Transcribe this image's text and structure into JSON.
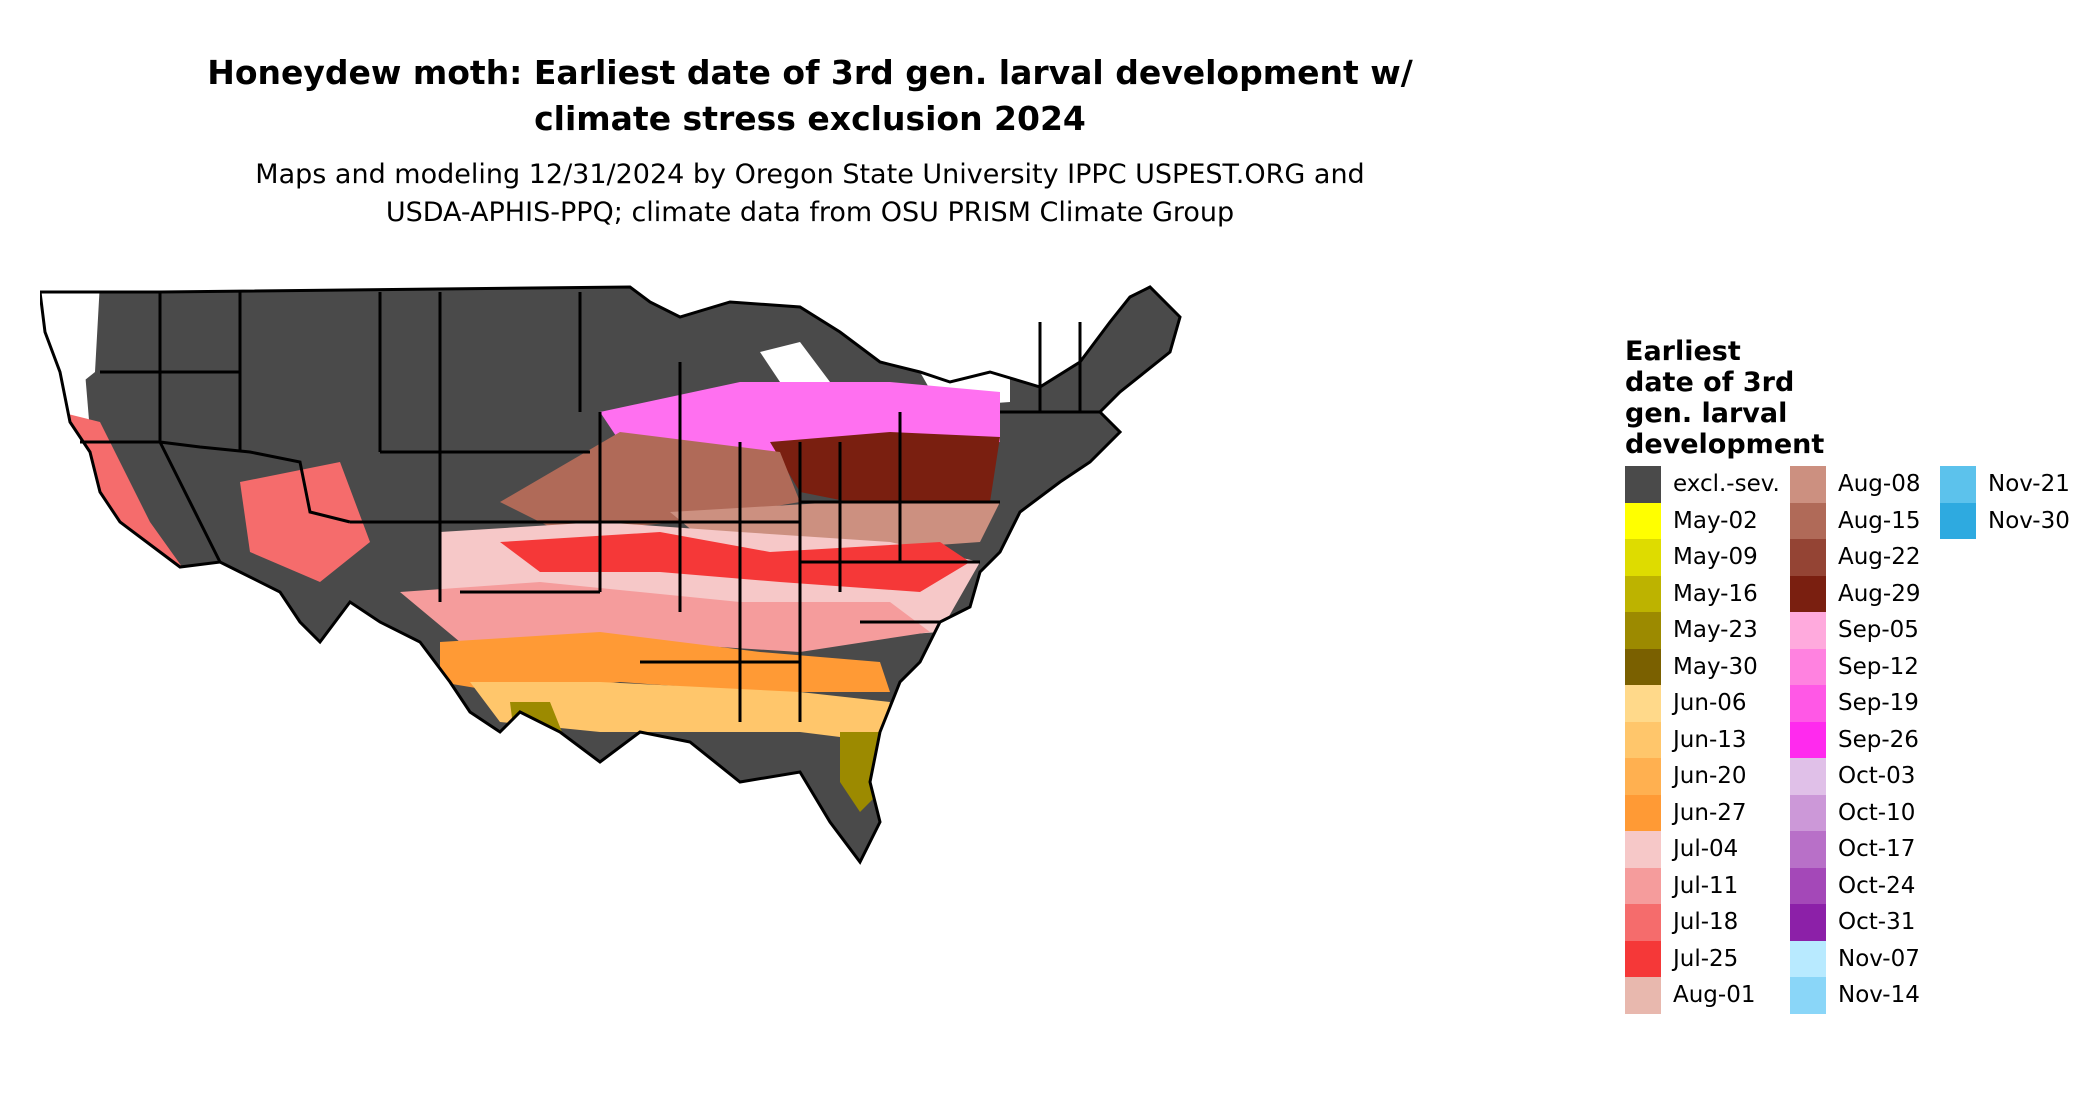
{
  "title_lines": [
    "Honeydew moth: Earliest date of 3rd gen. larval development w/",
    "climate stress exclusion 2024"
  ],
  "subtitle_lines": [
    "Maps and modeling 12/31/2024 by Oregon State University IPPC USPEST.ORG and",
    "USDA-APHIS-PPQ; climate data from OSU PRISM Climate Group"
  ],
  "legend": {
    "title_lines": [
      "Earliest",
      "date of 3rd",
      "gen. larval",
      "development"
    ],
    "columns": [
      [
        {
          "label": "excl.-sev.",
          "color": "#4a4a4a"
        },
        {
          "label": "May-02",
          "color": "#ffff00"
        },
        {
          "label": "May-09",
          "color": "#dedc00"
        },
        {
          "label": "May-16",
          "color": "#bdb300"
        },
        {
          "label": "May-23",
          "color": "#9c8a00"
        },
        {
          "label": "May-30",
          "color": "#7a6000"
        },
        {
          "label": "Jun-06",
          "color": "#ffd98a"
        },
        {
          "label": "Jun-13",
          "color": "#ffc66b"
        },
        {
          "label": "Jun-20",
          "color": "#ffb050"
        },
        {
          "label": "Jun-27",
          "color": "#ff9a35"
        },
        {
          "label": "Jul-04",
          "color": "#f6c8c8"
        },
        {
          "label": "Jul-11",
          "color": "#f59c9c"
        },
        {
          "label": "Jul-18",
          "color": "#f56c6c"
        },
        {
          "label": "Jul-25",
          "color": "#f53838"
        },
        {
          "label": "Aug-01",
          "color": "#e8b8ae"
        }
      ],
      [
        {
          "label": "Aug-08",
          "color": "#cc9080"
        },
        {
          "label": "Aug-15",
          "color": "#b06a58"
        },
        {
          "label": "Aug-22",
          "color": "#944434"
        },
        {
          "label": "Aug-29",
          "color": "#7a1f10"
        },
        {
          "label": "Sep-05",
          "color": "#ffaadd"
        },
        {
          "label": "Sep-12",
          "color": "#ff82e0"
        },
        {
          "label": "Sep-19",
          "color": "#ff58e6"
        },
        {
          "label": "Sep-26",
          "color": "#ff2aee"
        },
        {
          "label": "Oct-03",
          "color": "#e0c0e8"
        },
        {
          "label": "Oct-10",
          "color": "#cc98d8"
        },
        {
          "label": "Oct-17",
          "color": "#b870c8"
        },
        {
          "label": "Oct-24",
          "color": "#a448b8"
        },
        {
          "label": "Oct-31",
          "color": "#8c20a8"
        },
        {
          "label": "Nov-07",
          "color": "#b8eaff"
        },
        {
          "label": "Nov-14",
          "color": "#8ad6f8"
        }
      ],
      [
        {
          "label": "Nov-21",
          "color": "#5cc2ec"
        },
        {
          "label": "Nov-30",
          "color": "#2eaae0"
        }
      ]
    ]
  },
  "map_colors": {
    "excluded": "#4a4a4a",
    "north_band": "#ff70f0",
    "unshaded": "#ffffff",
    "state_border": "#000000"
  }
}
